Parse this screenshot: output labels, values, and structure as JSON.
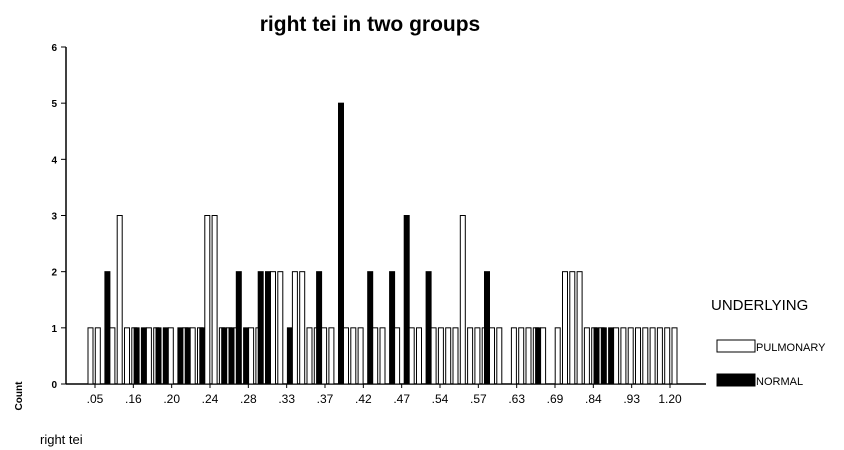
{
  "chart_data": {
    "type": "bar",
    "title": "right tei in two groups",
    "xlabel": "right tei",
    "ylabel": "Count",
    "ylim": [
      0,
      6
    ],
    "y_ticks": [
      "0",
      "1",
      "2",
      "3",
      "4",
      "5",
      "6"
    ],
    "x_tick_labels": [
      ".05",
      ".16",
      ".20",
      ".24",
      ".28",
      ".33",
      ".37",
      ".42",
      ".47",
      ".54",
      ".57",
      ".63",
      ".69",
      ".84",
      ".93",
      "1.20"
    ],
    "legend": {
      "title": "UNDERLYING",
      "position": "right",
      "items": [
        {
          "name": "PULMONARY",
          "color": "#ffffff"
        },
        {
          "name": "NORMAL",
          "color": "#000000"
        }
      ]
    },
    "grid": false,
    "series": [
      {
        "name": "PULMONARY",
        "color": "#ffffff",
        "values": [
          1,
          1,
          0,
          1,
          3,
          1,
          1,
          0,
          1,
          1,
          0,
          1,
          0,
          1,
          1,
          1,
          3,
          3,
          1,
          1,
          1,
          0,
          1,
          1,
          0,
          2,
          2,
          0,
          2,
          2,
          1,
          1,
          1,
          1,
          0,
          1,
          1,
          1,
          0,
          1,
          1,
          0,
          1,
          0,
          1,
          1,
          0,
          1,
          1,
          1,
          1,
          3,
          1,
          1,
          1,
          1,
          1,
          0,
          1,
          1,
          1,
          1,
          1,
          0,
          1,
          2,
          2,
          2,
          1,
          1,
          1,
          0,
          1,
          1,
          1,
          1,
          1,
          1,
          1,
          1,
          1
        ]
      },
      {
        "name": "NORMAL",
        "color": "#000000",
        "values": [
          0,
          0,
          2,
          0,
          0,
          0,
          1,
          1,
          0,
          1,
          1,
          0,
          1,
          1,
          0,
          1,
          0,
          0,
          1,
          1,
          2,
          1,
          0,
          2,
          2,
          0,
          0,
          1,
          0,
          0,
          0,
          2,
          0,
          0,
          5,
          0,
          0,
          0,
          2,
          0,
          0,
          2,
          0,
          3,
          0,
          0,
          2,
          0,
          0,
          0,
          0,
          0,
          0,
          0,
          2,
          0,
          0,
          0,
          0,
          0,
          0,
          1,
          0,
          0,
          0,
          0,
          0,
          0,
          0,
          1,
          1,
          1,
          0,
          0,
          0,
          0,
          0,
          0,
          0,
          0,
          0
        ]
      }
    ]
  }
}
